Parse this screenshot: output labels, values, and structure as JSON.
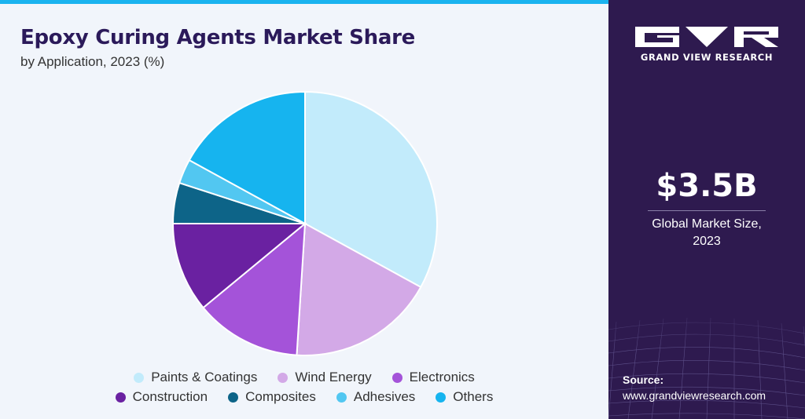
{
  "header": {
    "title": "Epoxy Curing Agents Market Share",
    "subtitle": "by Application, 2023 (%)"
  },
  "chart_data": {
    "type": "pie",
    "categories": [
      "Paints & Coatings",
      "Wind Energy",
      "Electronics",
      "Construction",
      "Composites",
      "Adhesives",
      "Others"
    ],
    "values": [
      33,
      18,
      13,
      11,
      5,
      3,
      17
    ],
    "colors": [
      "#c2ebfb",
      "#d3a9e7",
      "#a453d9",
      "#6a21a1",
      "#0d6488",
      "#52c7f1",
      "#16b4ef"
    ],
    "start_angle_deg": 0,
    "direction": "clockwise",
    "legend_position": "bottom",
    "legend": [
      [
        "Paints & Coatings",
        "Wind Energy",
        "Electronics"
      ],
      [
        "Construction",
        "Composites",
        "Adhesives",
        "Others"
      ]
    ]
  },
  "sidebar": {
    "brand": "GRAND VIEW RESEARCH",
    "market_value": "$3.5B",
    "market_label_line1": "Global Market Size,",
    "market_label_line2": "2023",
    "source_label": "Source:",
    "source_url": "www.grandviewresearch.com"
  }
}
